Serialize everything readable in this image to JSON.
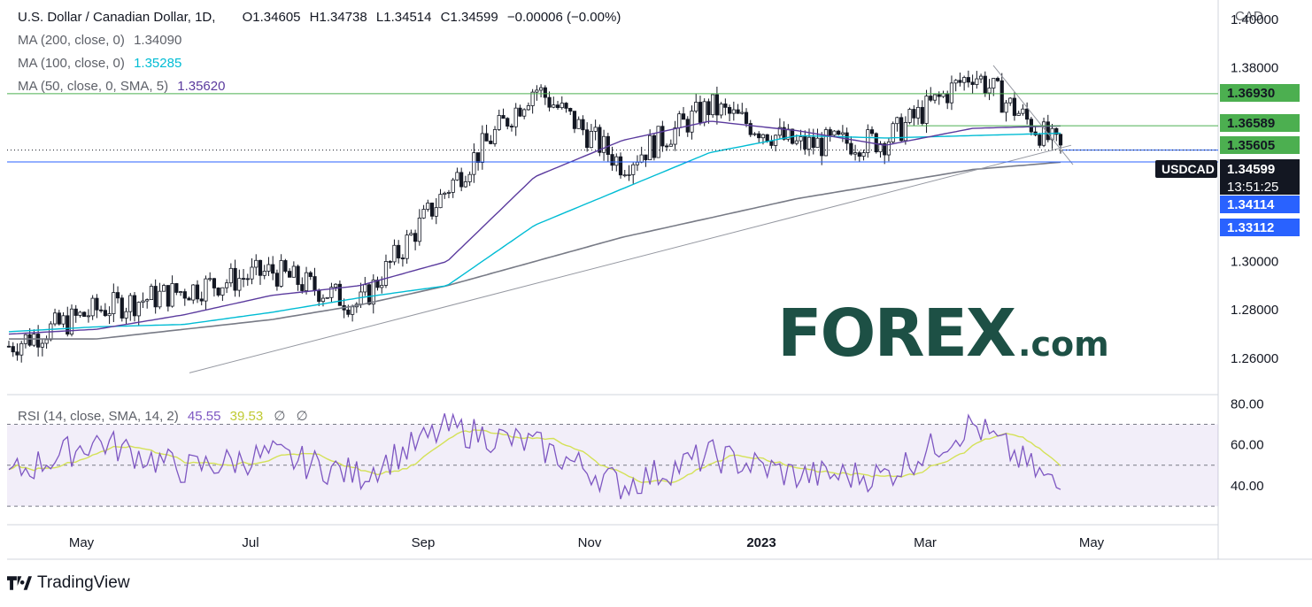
{
  "header": {
    "symbol_title": "U.S. Dollar / Canadian Dollar, 1D,",
    "ohlc": {
      "open": "O1.34605",
      "high": "H1.34738",
      "low": "L1.34514",
      "close": "C1.34599",
      "change": "−0.00006 (−0.00%)"
    }
  },
  "indicators": {
    "ma200": {
      "label": "MA (200, close, 0)",
      "value": "1.34090",
      "color": "#787b86"
    },
    "ma100": {
      "label": "MA (100, close, 0)",
      "value": "1.35285",
      "color": "#00bcd4"
    },
    "ma50": {
      "label": "MA (50, close, 0, SMA, 5)",
      "value": "1.35620",
      "color": "#5b3b9e"
    },
    "rsi": {
      "label": "RSI (14, close, SMA, 14, 2)",
      "value": "45.55",
      "sma_value": "39.53",
      "na1": "∅",
      "na2": "∅",
      "color": "#7e57c2",
      "sma_color": "#d4e157"
    }
  },
  "price_axis": {
    "currency": "CAD",
    "ticks": [
      "1.40000",
      "1.38000",
      "1.30000",
      "1.28000",
      "1.26000"
    ],
    "levels": [
      {
        "value": "1.36930",
        "color": "#4caf50",
        "text_color": "#131722"
      },
      {
        "value": "1.36589",
        "color": "#4caf50",
        "text_color": "#131722"
      },
      {
        "value": "1.35605",
        "color": "#4caf50",
        "text_color": "#131722"
      },
      {
        "value": "1.34114",
        "color": "#2962ff",
        "text_color": "#ffffff"
      },
      {
        "value": "1.33112",
        "color": "#2962ff",
        "text_color": "#ffffff"
      }
    ],
    "current": {
      "symbol": "USDCAD",
      "price": "1.34599",
      "countdown": "13:51:25"
    }
  },
  "rsi_axis": {
    "ticks": [
      "80.00",
      "60.00",
      "40.00"
    ]
  },
  "time_axis": {
    "labels": [
      "May",
      "Jul",
      "Sep",
      "Nov",
      "2023",
      "Mar",
      "May"
    ]
  },
  "watermark": {
    "main": "FOREX",
    "suffix": ".com"
  },
  "branding": {
    "text": "TradingView"
  },
  "chart_data": {
    "type": "candlestick",
    "symbol": "USDCAD",
    "interval": "1D",
    "ylim": [
      1.245,
      1.408
    ],
    "rsi_ylim": [
      21,
      84
    ],
    "rsi_bands": [
      70,
      50,
      30
    ],
    "horizontal_levels": [
      1.3693,
      1.36589,
      1.35605,
      1.34599,
      1.34114
    ],
    "x_months": [
      "2022-04",
      "2022-05",
      "2022-06",
      "2022-07",
      "2022-08",
      "2022-09",
      "2022-10",
      "2022-11",
      "2022-12",
      "2023-01",
      "2023-02",
      "2023-03",
      "2023-04"
    ],
    "close_monthly": [
      1.265,
      1.28,
      1.288,
      1.296,
      1.282,
      1.33,
      1.372,
      1.34,
      1.364,
      1.348,
      1.35,
      1.378,
      1.346
    ],
    "ma50_monthly": [
      1.27,
      1.272,
      1.278,
      1.286,
      1.29,
      1.3,
      1.335,
      1.35,
      1.358,
      1.354,
      1.348,
      1.355,
      1.356
    ],
    "ma100_monthly": [
      1.271,
      1.273,
      1.274,
      1.279,
      1.285,
      1.29,
      1.315,
      1.33,
      1.345,
      1.352,
      1.351,
      1.352,
      1.353
    ],
    "ma200_monthly": [
      1.268,
      1.268,
      1.272,
      1.276,
      1.282,
      1.29,
      1.3,
      1.31,
      1.318,
      1.326,
      1.332,
      1.338,
      1.341
    ],
    "rsi_monthly": [
      45,
      62,
      48,
      55,
      45,
      68,
      60,
      40,
      55,
      45,
      45,
      70,
      38
    ]
  }
}
